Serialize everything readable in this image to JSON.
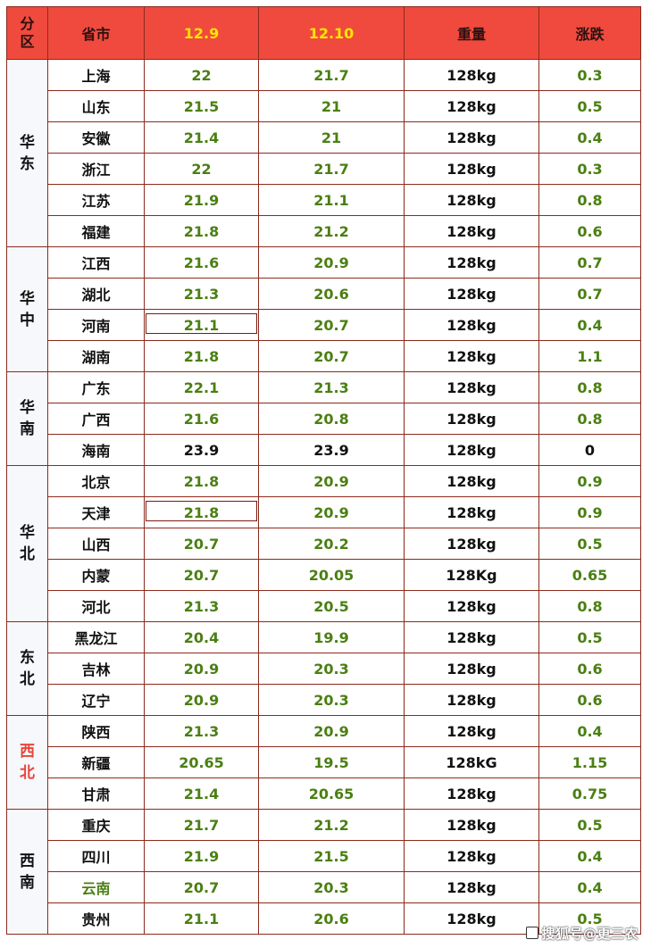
{
  "header": {
    "region": "分区",
    "province": "省市",
    "date1": "12.9",
    "date2": "12.10",
    "weight": "重量",
    "change": "涨跌"
  },
  "regions": [
    {
      "name": "华东",
      "rows": [
        {
          "province": "上海",
          "d1": "22",
          "d2": "21.7",
          "weight": "128kg",
          "change": "0.3"
        },
        {
          "province": "山东",
          "d1": "21.5",
          "d2": "21",
          "weight": "128kg",
          "change": "0.5"
        },
        {
          "province": "安徽",
          "d1": "21.4",
          "d2": "21",
          "weight": "128kg",
          "change": "0.4"
        },
        {
          "province": "浙江",
          "d1": "22",
          "d2": "21.7",
          "weight": "128kg",
          "change": "0.3"
        },
        {
          "province": "江苏",
          "d1": "21.9",
          "d2": "21.1",
          "weight": "128kg",
          "change": "0.8"
        },
        {
          "province": "福建",
          "d1": "21.8",
          "d2": "21.2",
          "weight": "128kg",
          "change": "0.6"
        }
      ]
    },
    {
      "name": "华中",
      "rows": [
        {
          "province": "江西",
          "d1": "21.6",
          "d2": "20.9",
          "weight": "128kg",
          "change": "0.7"
        },
        {
          "province": "湖北",
          "d1": "21.3",
          "d2": "20.6",
          "weight": "128kg",
          "change": "0.7"
        },
        {
          "province": "河南",
          "d1": "21.1",
          "d2": "20.7",
          "weight": "128kg",
          "change": "0.4"
        },
        {
          "province": "湖南",
          "d1": "21.8",
          "d2": "20.7",
          "weight": "128kg",
          "change": "1.1"
        }
      ]
    },
    {
      "name": "华南",
      "rows": [
        {
          "province": "广东",
          "d1": "22.1",
          "d2": "21.3",
          "weight": "128kg",
          "change": "0.8"
        },
        {
          "province": "广西",
          "d1": "21.6",
          "d2": "20.8",
          "weight": "128kg",
          "change": "0.8"
        },
        {
          "province": "海南",
          "d1": "23.9",
          "d2": "23.9",
          "weight": "128kg",
          "change": "0"
        }
      ]
    },
    {
      "name": "华北",
      "rows": [
        {
          "province": "北京",
          "d1": "21.8",
          "d2": "20.9",
          "weight": "128kg",
          "change": "0.9"
        },
        {
          "province": "天津",
          "d1": "21.8",
          "d2": "20.9",
          "weight": "128kg",
          "change": "0.9"
        },
        {
          "province": "山西",
          "d1": "20.7",
          "d2": "20.2",
          "weight": "128kg",
          "change": "0.5"
        },
        {
          "province": "内蒙",
          "d1": "20.7",
          "d2": "20.05",
          "weight": "128Kg",
          "change": "0.65"
        },
        {
          "province": "河北",
          "d1": "21.3",
          "d2": "20.5",
          "weight": "128kg",
          "change": "0.8"
        }
      ]
    },
    {
      "name": "东北",
      "rows": [
        {
          "province": "黑龙江",
          "d1": "20.4",
          "d2": "19.9",
          "weight": "128kg",
          "change": "0.5"
        },
        {
          "province": "吉林",
          "d1": "20.9",
          "d2": "20.3",
          "weight": "128kg",
          "change": "0.6"
        },
        {
          "province": "辽宁",
          "d1": "20.9",
          "d2": "20.3",
          "weight": "128kg",
          "change": "0.6"
        }
      ]
    },
    {
      "name": "西北",
      "rows": [
        {
          "province": "陕西",
          "d1": "21.3",
          "d2": "20.9",
          "weight": "128kg",
          "change": "0.4"
        },
        {
          "province": "新疆",
          "d1": "20.65",
          "d2": "19.5",
          "weight": "128kG",
          "change": "1.15"
        },
        {
          "province": "甘肃",
          "d1": "21.4",
          "d2": "20.65",
          "weight": "128kg",
          "change": "0.75"
        }
      ]
    },
    {
      "name": "西南",
      "rows": [
        {
          "province": "重庆",
          "d1": "21.7",
          "d2": "21.2",
          "weight": "128kg",
          "change": "0.5"
        },
        {
          "province": "四川",
          "d1": "21.9",
          "d2": "21.5",
          "weight": "128kg",
          "change": "0.4"
        },
        {
          "province": "云南",
          "d1": "20.7",
          "d2": "20.3",
          "weight": "128kg",
          "change": "0.4"
        },
        {
          "province": "贵州",
          "d1": "21.1",
          "d2": "20.6",
          "weight": "128kg",
          "change": "0.5"
        }
      ]
    }
  ],
  "colors": {
    "header_bg": "#f04a3e",
    "date_header_text": "#ffe600",
    "value_green": "#4a7f12",
    "border": "#8b2a1c",
    "region_red": "#e8453a"
  },
  "watermark": "搜狐号@更三农"
}
